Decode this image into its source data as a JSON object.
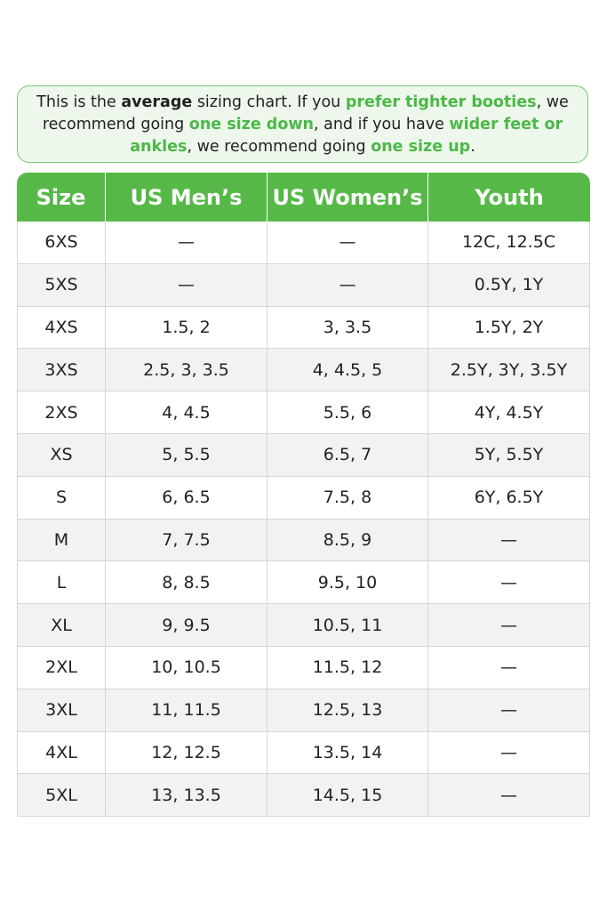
{
  "note": {
    "t1": "This is the ",
    "t2": "average",
    "t3": " sizing chart. If you ",
    "t4": "prefer tighter booties",
    "t5": ", we recommend going ",
    "t6": "one size down",
    "t7": ", and if you have ",
    "t8": "wider feet or ankles",
    "t9": ", we recommend going ",
    "t10": "one size up",
    "t11": "."
  },
  "colors": {
    "accent": "#56b947",
    "accent_text": "#4cb848",
    "note_bg": "#eef7ec",
    "alt_row": "#f2f2f2"
  },
  "table": {
    "headers": [
      "Size",
      "US Men’s",
      "US Women’s",
      "Youth"
    ],
    "rows": [
      [
        "6XS",
        "—",
        "—",
        "12C, 12.5C"
      ],
      [
        "5XS",
        "—",
        "—",
        "0.5Y, 1Y"
      ],
      [
        "4XS",
        "1.5, 2",
        "3, 3.5",
        "1.5Y, 2Y"
      ],
      [
        "3XS",
        "2.5, 3, 3.5",
        "4, 4.5, 5",
        "2.5Y, 3Y, 3.5Y"
      ],
      [
        "2XS",
        "4, 4.5",
        "5.5, 6",
        "4Y, 4.5Y"
      ],
      [
        "XS",
        "5, 5.5",
        "6.5, 7",
        "5Y, 5.5Y"
      ],
      [
        "S",
        "6, 6.5",
        "7.5, 8",
        "6Y, 6.5Y"
      ],
      [
        "M",
        "7, 7.5",
        "8.5, 9",
        "—"
      ],
      [
        "L",
        "8, 8.5",
        "9.5, 10",
        "—"
      ],
      [
        "XL",
        "9, 9.5",
        "10.5, 11",
        "—"
      ],
      [
        "2XL",
        "10, 10.5",
        "11.5, 12",
        "—"
      ],
      [
        "3XL",
        "11, 11.5",
        "12.5, 13",
        "—"
      ],
      [
        "4XL",
        "12, 12.5",
        "13.5, 14",
        "—"
      ],
      [
        "5XL",
        "13, 13.5",
        "14.5, 15",
        "—"
      ]
    ]
  }
}
